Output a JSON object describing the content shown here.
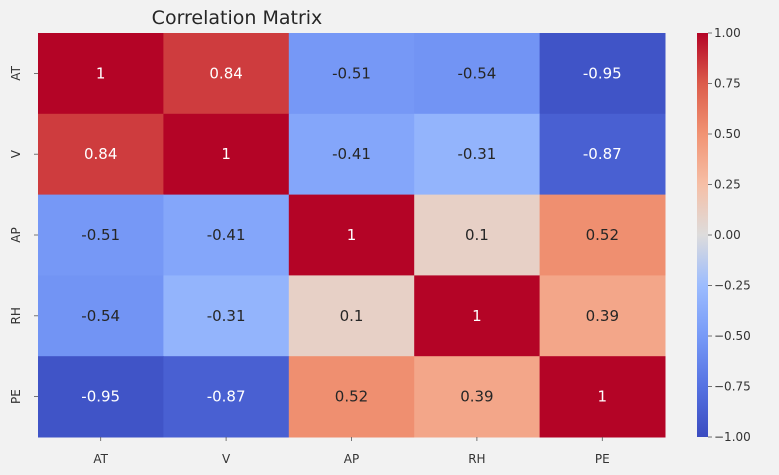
{
  "chart_data": {
    "type": "heatmap",
    "title": "Correlation Matrix",
    "x_categories": [
      "AT",
      "V",
      "AP",
      "RH",
      "PE"
    ],
    "y_categories": [
      "AT",
      "V",
      "AP",
      "RH",
      "PE"
    ],
    "values": [
      [
        1,
        0.84,
        -0.51,
        -0.54,
        -0.95
      ],
      [
        0.84,
        1,
        -0.41,
        -0.31,
        -0.87
      ],
      [
        -0.51,
        -0.41,
        1,
        0.1,
        0.52
      ],
      [
        -0.54,
        -0.31,
        0.1,
        1,
        0.39
      ],
      [
        -0.95,
        -0.87,
        0.52,
        0.39,
        1
      ]
    ],
    "annotations": [
      [
        "1",
        "0.84",
        "-0.51",
        "-0.54",
        "-0.95"
      ],
      [
        "0.84",
        "1",
        "-0.41",
        "-0.31",
        "-0.87"
      ],
      [
        "-0.51",
        "-0.41",
        "1",
        "0.1",
        "0.52"
      ],
      [
        "-0.54",
        "-0.31",
        "0.1",
        "1",
        "0.39"
      ],
      [
        "-0.95",
        "-0.87",
        "0.52",
        "0.39",
        "1"
      ]
    ],
    "colormap": "coolwarm",
    "vmin": -1,
    "vmax": 1,
    "colorbar_ticks": [
      1.0,
      0.75,
      0.5,
      0.25,
      0.0,
      -0.25,
      -0.5,
      -0.75,
      -1.0
    ],
    "colorbar_tick_labels": [
      "1.00",
      "0.75",
      "0.50",
      "0.25",
      "0.00",
      "−0.25",
      "−0.50",
      "−0.75",
      "−1.00"
    ],
    "grid": false,
    "legend": "colorbar-right"
  }
}
